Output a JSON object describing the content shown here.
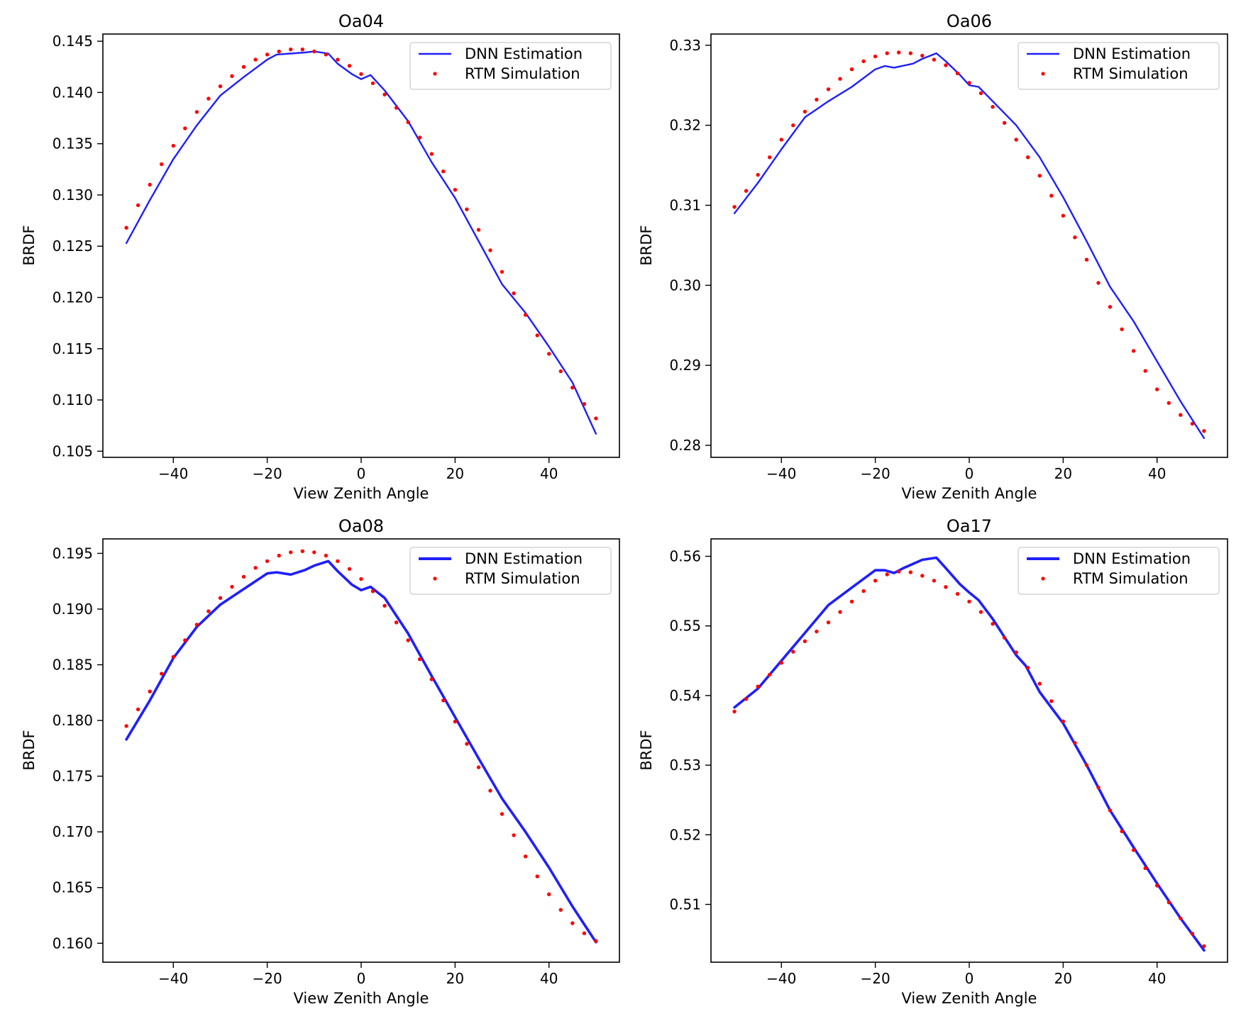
{
  "figure": {
    "background": "#ffffff"
  },
  "colors": {
    "dnn": "#1f1fff",
    "rtm": "#ff0000",
    "axis": "#000000"
  },
  "chart_data": [
    {
      "type": "line",
      "title": "Oa04",
      "xlabel": "View Zenith Angle",
      "ylabel": "BRDF",
      "xlim": [
        -55,
        55
      ],
      "ylim": [
        0.1044,
        0.1457
      ],
      "xticks": [
        -40,
        -20,
        0,
        20,
        40
      ],
      "xtick_labels": [
        "−40",
        "−20",
        "0",
        "20",
        "40"
      ],
      "yticks": [
        0.105,
        0.11,
        0.115,
        0.12,
        0.125,
        0.13,
        0.135,
        0.14,
        0.145
      ],
      "ytick_labels": [
        "0.105",
        "0.110",
        "0.115",
        "0.120",
        "0.125",
        "0.130",
        "0.135",
        "0.140",
        "0.145"
      ],
      "legend": {
        "position": "top-right",
        "entries": [
          "DNN Estimation",
          "RTM Simulation"
        ]
      },
      "series": [
        {
          "name": "DNN Estimation",
          "style": "line",
          "x": [
            -50,
            -45,
            -40,
            -35,
            -30,
            -25,
            -20,
            -18,
            -15,
            -12,
            -10,
            -7,
            -5,
            -2,
            0,
            2,
            5,
            10,
            15,
            20,
            25,
            30,
            35,
            40,
            45,
            50
          ],
          "y": [
            0.1253,
            0.1295,
            0.1335,
            0.1368,
            0.1397,
            0.1415,
            0.1432,
            0.1437,
            0.1438,
            0.1439,
            0.144,
            0.1438,
            0.1428,
            0.1418,
            0.1413,
            0.1417,
            0.1402,
            0.1372,
            0.1332,
            0.1297,
            0.1255,
            0.1213,
            0.1185,
            0.1152,
            0.1117,
            0.1067
          ]
        },
        {
          "name": "RTM Simulation",
          "style": "dots",
          "x": [
            -50,
            -47.5,
            -45,
            -42.5,
            -40,
            -37.5,
            -35,
            -32.5,
            -30,
            -27.5,
            -25,
            -22.5,
            -20,
            -17.5,
            -15,
            -12.5,
            -10,
            -7.5,
            -5,
            -2.5,
            0,
            2.5,
            5,
            7.5,
            10,
            12.5,
            15,
            17.5,
            20,
            22.5,
            25,
            27.5,
            30,
            32.5,
            35,
            37.5,
            40,
            42.5,
            45,
            47.5,
            50
          ],
          "y": [
            0.1268,
            0.129,
            0.131,
            0.133,
            0.1348,
            0.1365,
            0.1381,
            0.1394,
            0.1406,
            0.1416,
            0.1425,
            0.1432,
            0.1437,
            0.144,
            0.1442,
            0.1442,
            0.144,
            0.1437,
            0.1432,
            0.1426,
            0.1418,
            0.1409,
            0.1398,
            0.1385,
            0.1371,
            0.1356,
            0.134,
            0.1323,
            0.1305,
            0.1286,
            0.1266,
            0.1246,
            0.1225,
            0.1204,
            0.1183,
            0.1163,
            0.1145,
            0.1128,
            0.1112,
            0.1096,
            0.1082
          ]
        }
      ]
    },
    {
      "type": "line",
      "title": "Oa06",
      "xlabel": "View Zenith Angle",
      "ylabel": "BRDF",
      "xlim": [
        -55,
        55
      ],
      "ylim": [
        0.2785,
        0.3314
      ],
      "xticks": [
        -40,
        -20,
        0,
        20,
        40
      ],
      "xtick_labels": [
        "−40",
        "−20",
        "0",
        "20",
        "40"
      ],
      "yticks": [
        0.28,
        0.29,
        0.3,
        0.31,
        0.32,
        0.33
      ],
      "ytick_labels": [
        "0.28",
        "0.29",
        "0.30",
        "0.31",
        "0.32",
        "0.33"
      ],
      "legend": {
        "position": "top-right",
        "entries": [
          "DNN Estimation",
          "RTM Simulation"
        ]
      },
      "series": [
        {
          "name": "DNN Estimation",
          "style": "line",
          "x": [
            -50,
            -45,
            -40,
            -35,
            -30,
            -25,
            -20,
            -18,
            -16,
            -12,
            -10,
            -7,
            -5,
            -2,
            0,
            2,
            5,
            10,
            15,
            20,
            25,
            30,
            35,
            40,
            45,
            50
          ],
          "y": [
            0.309,
            0.3128,
            0.317,
            0.321,
            0.323,
            0.3248,
            0.327,
            0.3274,
            0.3272,
            0.3277,
            0.3283,
            0.329,
            0.328,
            0.3263,
            0.325,
            0.3248,
            0.323,
            0.32,
            0.316,
            0.311,
            0.3055,
            0.2998,
            0.2955,
            0.2905,
            0.2855,
            0.2809
          ]
        },
        {
          "name": "RTM Simulation",
          "style": "dots",
          "x": [
            -50,
            -47.5,
            -45,
            -42.5,
            -40,
            -37.5,
            -35,
            -32.5,
            -30,
            -27.5,
            -25,
            -22.5,
            -20,
            -17.5,
            -15,
            -12.5,
            -10,
            -7.5,
            -5,
            -2.5,
            0,
            2.5,
            5,
            7.5,
            10,
            12.5,
            15,
            17.5,
            20,
            22.5,
            25,
            27.5,
            30,
            32.5,
            35,
            37.5,
            40,
            42.5,
            45,
            47.5,
            50
          ],
          "y": [
            0.3098,
            0.3118,
            0.3138,
            0.316,
            0.3182,
            0.32,
            0.3217,
            0.3232,
            0.3245,
            0.3258,
            0.327,
            0.328,
            0.3286,
            0.329,
            0.3291,
            0.329,
            0.3287,
            0.3282,
            0.3275,
            0.3265,
            0.3253,
            0.324,
            0.3223,
            0.3203,
            0.3182,
            0.316,
            0.3137,
            0.3112,
            0.3087,
            0.306,
            0.3032,
            0.3003,
            0.2973,
            0.2945,
            0.2918,
            0.2893,
            0.287,
            0.2853,
            0.2838,
            0.2827,
            0.2818
          ]
        }
      ]
    },
    {
      "type": "line",
      "title": "Oa08",
      "xlabel": "View Zenith Angle",
      "ylabel": "BRDF",
      "xlim": [
        -55,
        55
      ],
      "ylim": [
        0.1583,
        0.1963
      ],
      "xticks": [
        -40,
        -20,
        0,
        20,
        40
      ],
      "xtick_labels": [
        "−40",
        "−20",
        "0",
        "20",
        "40"
      ],
      "yticks": [
        0.16,
        0.165,
        0.17,
        0.175,
        0.18,
        0.185,
        0.19,
        0.195
      ],
      "ytick_labels": [
        "0.160",
        "0.165",
        "0.170",
        "0.175",
        "0.180",
        "0.185",
        "0.190",
        "0.195"
      ],
      "legend": {
        "position": "top-right",
        "entries": [
          "DNN Estimation",
          "RTM Simulation"
        ]
      },
      "series": [
        {
          "name": "DNN Estimation",
          "style": "line",
          "x": [
            -50,
            -45,
            -40,
            -35,
            -30,
            -25,
            -20,
            -18,
            -15,
            -12,
            -10,
            -7,
            -5,
            -2,
            0,
            2,
            5,
            10,
            15,
            20,
            25,
            30,
            35,
            40,
            45,
            50
          ],
          "y": [
            0.1783,
            0.1818,
            0.1856,
            0.1884,
            0.1904,
            0.1918,
            0.1932,
            0.1933,
            0.1931,
            0.1935,
            0.1939,
            0.1943,
            0.1934,
            0.1922,
            0.1917,
            0.192,
            0.191,
            0.1878,
            0.184,
            0.1803,
            0.1766,
            0.173,
            0.17,
            0.1668,
            0.1633,
            0.1601
          ]
        },
        {
          "name": "RTM Simulation",
          "style": "dots",
          "x": [
            -50,
            -47.5,
            -45,
            -42.5,
            -40,
            -37.5,
            -35,
            -32.5,
            -30,
            -27.5,
            -25,
            -22.5,
            -20,
            -17.5,
            -15,
            -12.5,
            -10,
            -7.5,
            -5,
            -2.5,
            0,
            2.5,
            5,
            7.5,
            10,
            12.5,
            15,
            17.5,
            20,
            22.5,
            25,
            27.5,
            30,
            32.5,
            35,
            37.5,
            40,
            42.5,
            45,
            47.5,
            50
          ],
          "y": [
            0.1795,
            0.181,
            0.1826,
            0.1842,
            0.1857,
            0.1872,
            0.1886,
            0.1898,
            0.191,
            0.192,
            0.1929,
            0.1937,
            0.1943,
            0.1948,
            0.1951,
            0.1952,
            0.1951,
            0.1948,
            0.1943,
            0.1936,
            0.1927,
            0.1916,
            0.1903,
            0.1888,
            0.1872,
            0.1855,
            0.1837,
            0.1818,
            0.1799,
            0.1779,
            0.1758,
            0.1737,
            0.1716,
            0.1697,
            0.1678,
            0.166,
            0.1644,
            0.163,
            0.1618,
            0.1609,
            0.1602
          ]
        }
      ]
    },
    {
      "type": "line",
      "title": "Oa17",
      "xlabel": "View Zenith Angle",
      "ylabel": "BRDF",
      "xlim": [
        -55,
        55
      ],
      "ylim": [
        0.5017,
        0.5625
      ],
      "xticks": [
        -40,
        -20,
        0,
        20,
        40
      ],
      "xtick_labels": [
        "−40",
        "−20",
        "0",
        "20",
        "40"
      ],
      "yticks": [
        0.51,
        0.52,
        0.53,
        0.54,
        0.55,
        0.56
      ],
      "ytick_labels": [
        "0.51",
        "0.52",
        "0.53",
        "0.54",
        "0.55",
        "0.56"
      ],
      "legend": {
        "position": "top-right",
        "entries": [
          "DNN Estimation",
          "RTM Simulation"
        ]
      },
      "series": [
        {
          "name": "DNN Estimation",
          "style": "line",
          "x": [
            -50,
            -45,
            -40,
            -35,
            -30,
            -25,
            -20,
            -18,
            -16,
            -14,
            -10,
            -7,
            -5,
            -2,
            0,
            2,
            5,
            10,
            12,
            15,
            20,
            25,
            30,
            35,
            40,
            45,
            50
          ],
          "y": [
            0.5383,
            0.541,
            0.545,
            0.549,
            0.553,
            0.5555,
            0.558,
            0.558,
            0.5576,
            0.5583,
            0.5595,
            0.5598,
            0.5583,
            0.556,
            0.5548,
            0.5537,
            0.551,
            0.5458,
            0.5443,
            0.5405,
            0.536,
            0.53,
            0.5235,
            0.5182,
            0.513,
            0.508,
            0.5034
          ]
        },
        {
          "name": "RTM Simulation",
          "style": "dots",
          "x": [
            -50,
            -47.5,
            -45,
            -42.5,
            -40,
            -37.5,
            -35,
            -32.5,
            -30,
            -27.5,
            -25,
            -22.5,
            -20,
            -17.5,
            -15,
            -12.5,
            -10,
            -7.5,
            -5,
            -2.5,
            0,
            2.5,
            5,
            7.5,
            10,
            12.5,
            15,
            17.5,
            20,
            22.5,
            25,
            27.5,
            30,
            32.5,
            35,
            37.5,
            40,
            42.5,
            45,
            47.5,
            50
          ],
          "y": [
            0.5377,
            0.5395,
            0.5413,
            0.543,
            0.5447,
            0.5463,
            0.5478,
            0.5492,
            0.5505,
            0.552,
            0.5535,
            0.555,
            0.5565,
            0.5574,
            0.5578,
            0.5577,
            0.5572,
            0.5565,
            0.5556,
            0.5546,
            0.5535,
            0.552,
            0.5503,
            0.5483,
            0.5462,
            0.544,
            0.5417,
            0.5392,
            0.5363,
            0.5332,
            0.53,
            0.5268,
            0.5235,
            0.5205,
            0.5178,
            0.5152,
            0.5127,
            0.5103,
            0.508,
            0.5058,
            0.504
          ]
        }
      ]
    }
  ]
}
